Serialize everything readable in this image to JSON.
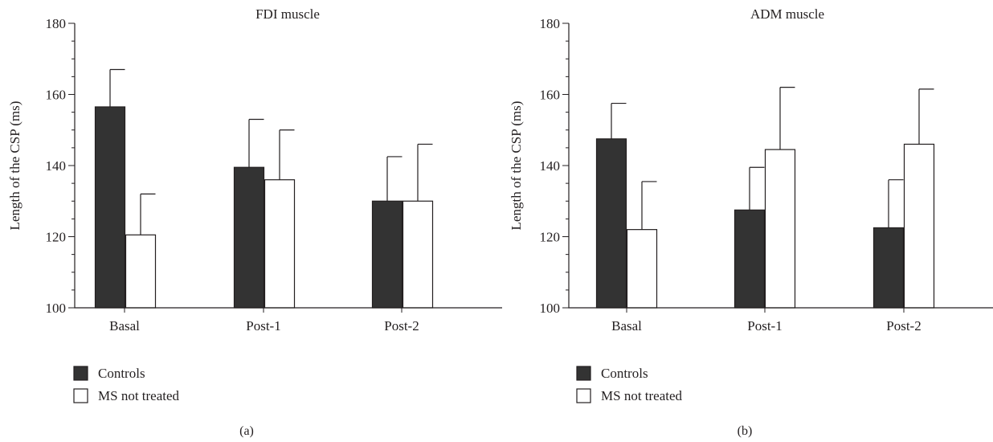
{
  "chart_data": [
    {
      "type": "bar",
      "title": "FDI muscle",
      "ylabel": "Length of the CSP (ms)",
      "xlabel": "",
      "panel_label": "(a)",
      "categories": [
        "Basal",
        "Post-1",
        "Post-2"
      ],
      "ylim": [
        100,
        180
      ],
      "yticks": [
        100,
        120,
        140,
        160,
        180
      ],
      "legend_position": "bottom-left",
      "series": [
        {
          "name": "Controls",
          "color": "#333333",
          "values": [
            156.5,
            139.5,
            130
          ],
          "error": [
            10.5,
            13.5,
            12.5
          ]
        },
        {
          "name": "MS not treated",
          "color": "#ffffff",
          "values": [
            120.5,
            136,
            130
          ],
          "error": [
            11.5,
            14,
            16
          ]
        }
      ]
    },
    {
      "type": "bar",
      "title": "ADM muscle",
      "ylabel": "Length of the CSP (ms)",
      "xlabel": "",
      "panel_label": "(b)",
      "categories": [
        "Basal",
        "Post-1",
        "Post-2"
      ],
      "ylim": [
        100,
        180
      ],
      "yticks": [
        100,
        120,
        140,
        160,
        180
      ],
      "legend_position": "bottom-left",
      "series": [
        {
          "name": "Controls",
          "color": "#333333",
          "values": [
            147.5,
            127.5,
            122.5
          ],
          "error": [
            10,
            12,
            13.5
          ]
        },
        {
          "name": "MS not treated",
          "color": "#ffffff",
          "values": [
            122,
            144.5,
            146
          ],
          "error": [
            13.5,
            17.5,
            15.5
          ]
        }
      ]
    }
  ]
}
